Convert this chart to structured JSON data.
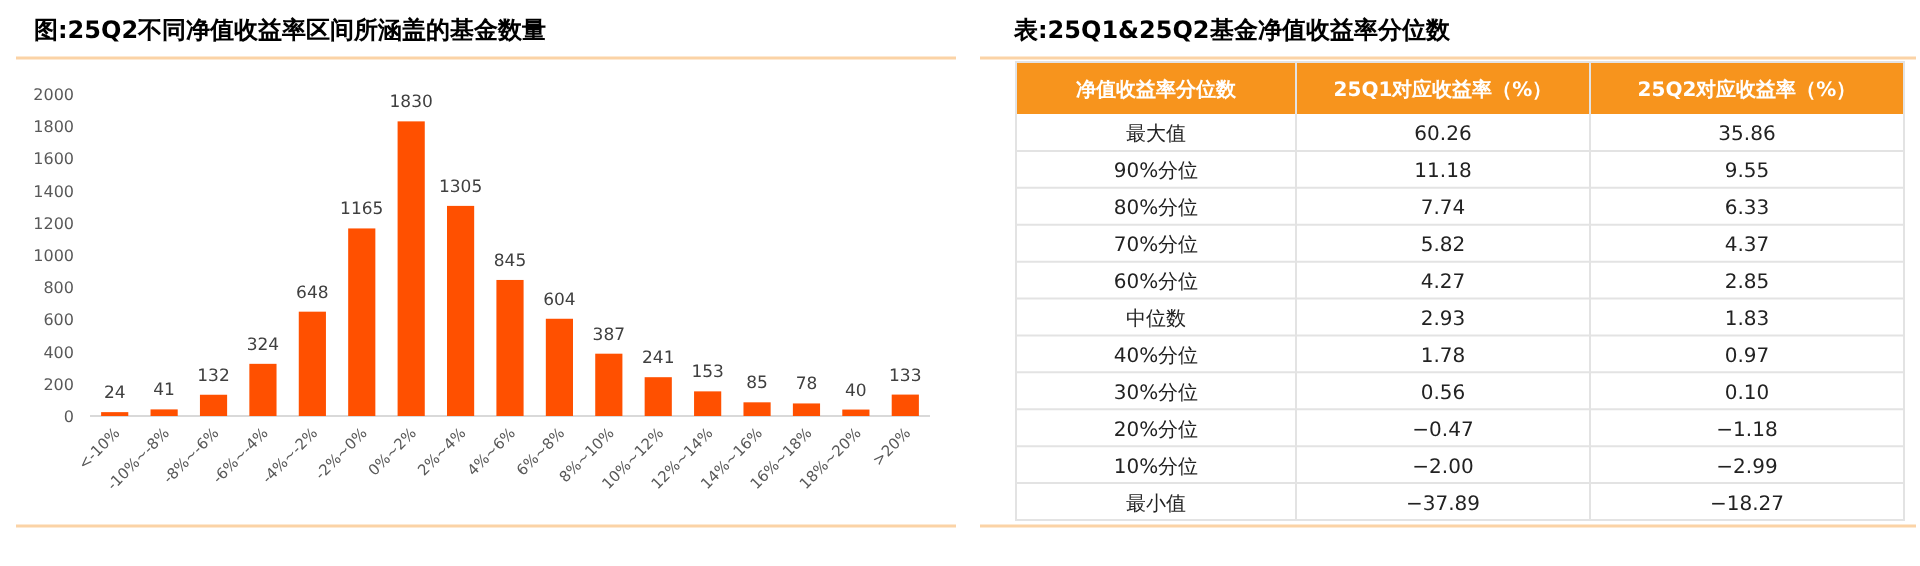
{
  "chart_data": [
    {
      "type": "bar",
      "title": "图:25Q2不同净值收益率区间所涵盖的基金数量",
      "categories": [
        "<-10%",
        "-10%~-8%",
        "-8%~-6%",
        "-6%~-4%",
        "-4%~-2%",
        "-2%~0%",
        "0%~2%",
        "2%~4%",
        "4%~6%",
        "6%~8%",
        "8%~10%",
        "10%~12%",
        "12%~14%",
        "14%~16%",
        "16%~18%",
        "18%~20%",
        ">20%"
      ],
      "values": [
        24,
        41,
        132,
        324,
        648,
        1165,
        1830,
        1305,
        845,
        604,
        387,
        241,
        153,
        85,
        78,
        40,
        133
      ],
      "color": "#ff5000",
      "ylim": [
        0,
        2000
      ],
      "yticks": [
        0,
        200,
        400,
        600,
        800,
        1000,
        1200,
        1400,
        1600,
        1800,
        2000
      ],
      "grid": false,
      "data_labels": true
    },
    {
      "type": "other",
      "title": "表:25Q1&25Q2基金净值收益率分位数",
      "categories": [
        "净值收益率分位数",
        "25Q1对应收益率（%）",
        "25Q2对应收益率（%）"
      ],
      "y_categories": [
        "最大值",
        "90%分位",
        "80%分位",
        "70%分位",
        "60%分位",
        "中位数",
        "40%分位",
        "30%分位",
        "20%分位",
        "10%分位",
        "最小值"
      ],
      "cells": [
        [
          "60.26",
          "35.86"
        ],
        [
          "11.18",
          "9.55"
        ],
        [
          "7.74",
          "6.33"
        ],
        [
          "5.82",
          "4.37"
        ],
        [
          "4.27",
          "2.85"
        ],
        [
          "2.93",
          "1.83"
        ],
        [
          "1.78",
          "0.97"
        ],
        [
          "0.56",
          "0.10"
        ],
        [
          "−0.47",
          "−1.18"
        ],
        [
          "−2.00",
          "−2.99"
        ],
        [
          "−37.89",
          "−18.27"
        ]
      ],
      "color": "#f7941d"
    }
  ]
}
